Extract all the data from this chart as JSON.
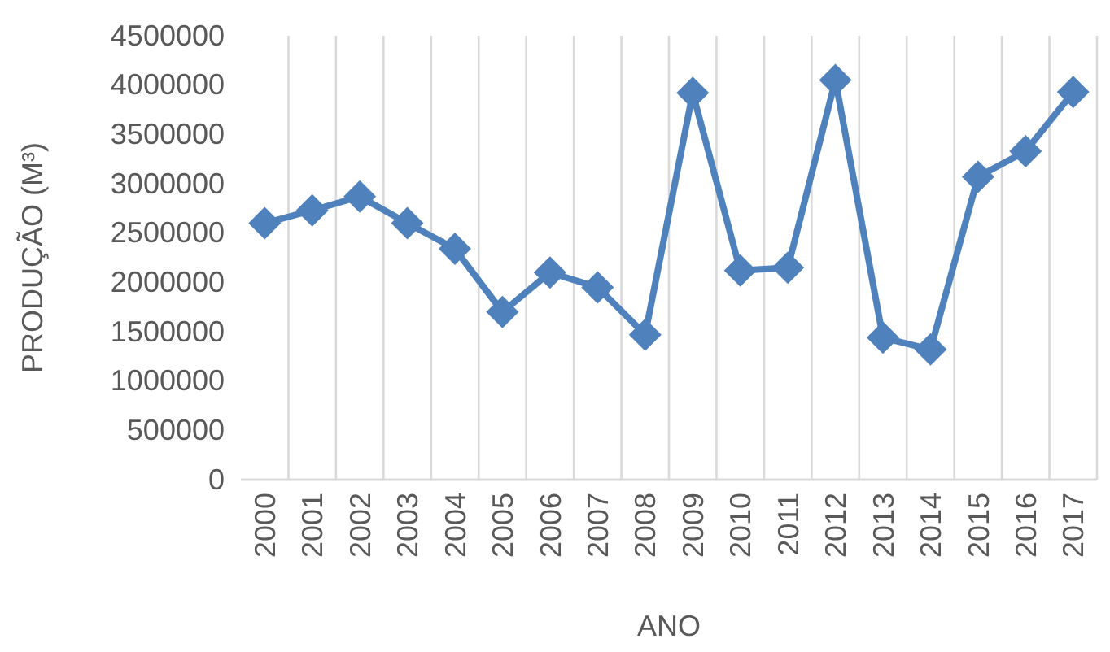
{
  "chart_data": {
    "type": "line",
    "xlabel": "ANO",
    "ylabel": "PRODUÇÃO (M³)",
    "categories": [
      "2000",
      "2001",
      "2002",
      "2003",
      "2004",
      "2005",
      "2006",
      "2007",
      "2008",
      "2009",
      "2010",
      "2011",
      "2012",
      "2013",
      "2014",
      "2015",
      "2016",
      "2017"
    ],
    "series": [
      {
        "color": "#4f81bd",
        "values": [
          2600000,
          2730000,
          2870000,
          2600000,
          2340000,
          1700000,
          2100000,
          1950000,
          1470000,
          3920000,
          2120000,
          2150000,
          4050000,
          1440000,
          1320000,
          3070000,
          3330000,
          3930000
        ]
      }
    ],
    "ylim": [
      0,
      4500000
    ],
    "yticks": [
      0,
      500000,
      1000000,
      1500000,
      2000000,
      2500000,
      3000000,
      3500000,
      4000000,
      4500000
    ],
    "grid": "x",
    "marker": "diamond",
    "line_style": "solid"
  }
}
